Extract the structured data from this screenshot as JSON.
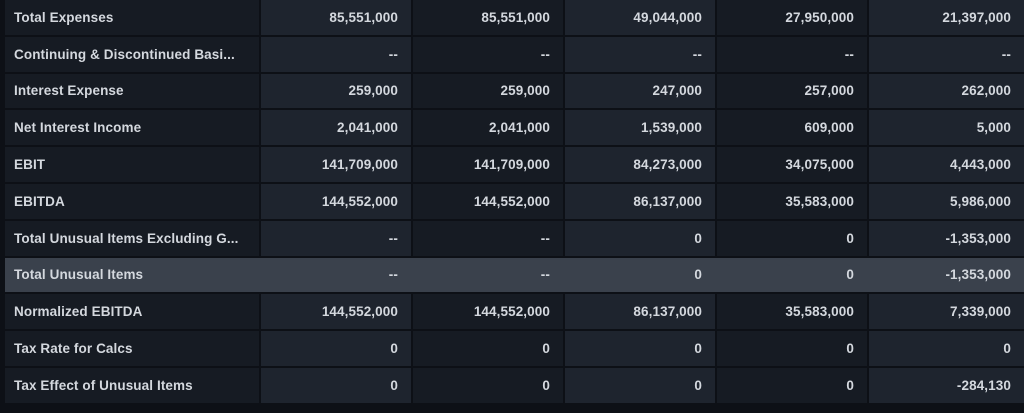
{
  "table": {
    "highlighted_row_label": "Total Unusual Items",
    "colors": {
      "background": "#0d1016",
      "cell_dark": "#161b23",
      "cell_light": "#1e242e",
      "row_highlight": "#3a414c",
      "text": "#d4d8de"
    },
    "rows": [
      {
        "label": "Total Expenses",
        "values": [
          "85,551,000",
          "85,551,000",
          "49,044,000",
          "27,950,000",
          "21,397,000"
        ]
      },
      {
        "label": "Continuing & Discontinued Basi...",
        "values": [
          "--",
          "--",
          "--",
          "--",
          "--"
        ]
      },
      {
        "label": "Interest Expense",
        "values": [
          "259,000",
          "259,000",
          "247,000",
          "257,000",
          "262,000"
        ]
      },
      {
        "label": "Net Interest Income",
        "values": [
          "2,041,000",
          "2,041,000",
          "1,539,000",
          "609,000",
          "5,000"
        ]
      },
      {
        "label": "EBIT",
        "values": [
          "141,709,000",
          "141,709,000",
          "84,273,000",
          "34,075,000",
          "4,443,000"
        ]
      },
      {
        "label": "EBITDA",
        "values": [
          "144,552,000",
          "144,552,000",
          "86,137,000",
          "35,583,000",
          "5,986,000"
        ]
      },
      {
        "label": "Total Unusual Items Excluding G...",
        "values": [
          "--",
          "--",
          "0",
          "0",
          "-1,353,000"
        ]
      },
      {
        "label": "Total Unusual Items",
        "values": [
          "--",
          "--",
          "0",
          "0",
          "-1,353,000"
        ],
        "highlighted": true
      },
      {
        "label": "Normalized EBITDA",
        "values": [
          "144,552,000",
          "144,552,000",
          "86,137,000",
          "35,583,000",
          "7,339,000"
        ]
      },
      {
        "label": "Tax Rate for Calcs",
        "values": [
          "0",
          "0",
          "0",
          "0",
          "0"
        ]
      },
      {
        "label": "Tax Effect of Unusual Items",
        "values": [
          "0",
          "0",
          "0",
          "0",
          "-284,130"
        ]
      }
    ]
  }
}
